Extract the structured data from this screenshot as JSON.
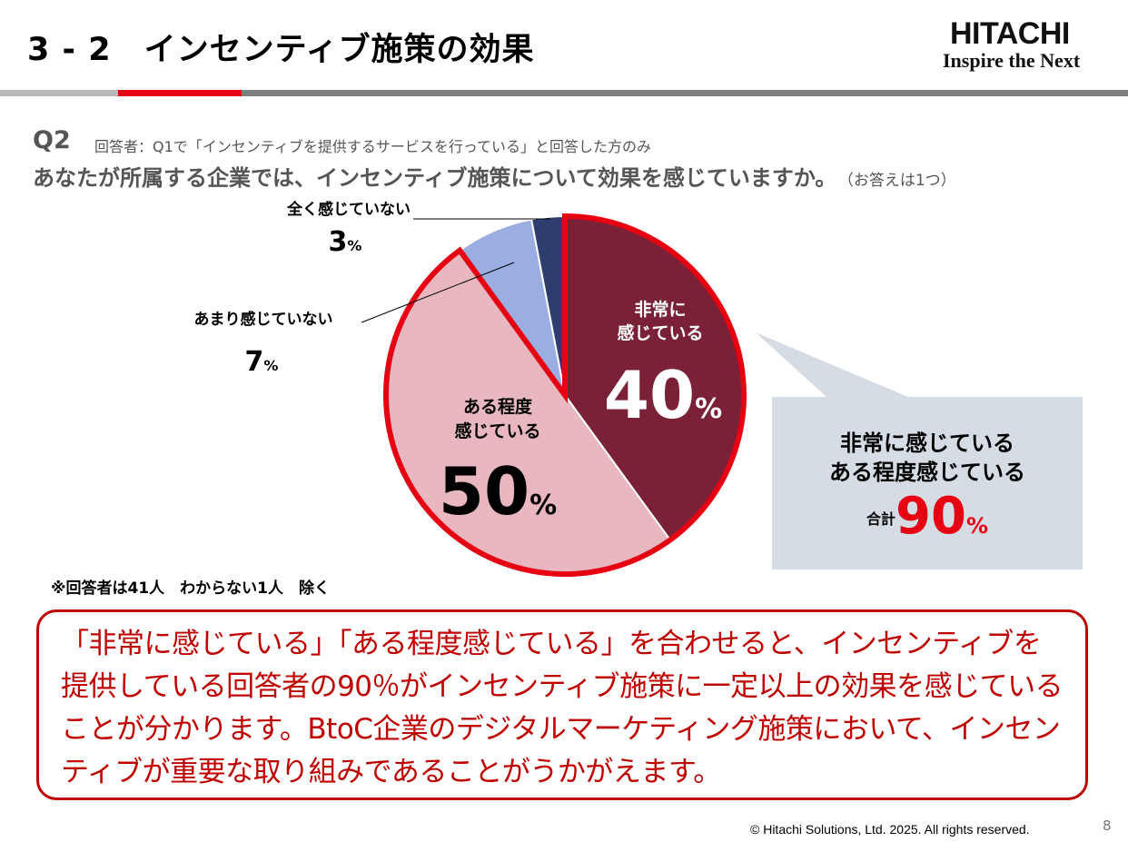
{
  "header": {
    "title": "3 - 2　インセンティブ施策の効果",
    "logo_main": "HITACHI",
    "logo_tagline": "Inspire the Next"
  },
  "question": {
    "label": "Q2",
    "respondents": "回答者：Q1で「インセンティブを提供するサービスを行っている」と回答した方のみ",
    "text": "あなたが所属する企業では、インセンティブ施策について効果を感じていますか。",
    "note": "（お答えは1つ）"
  },
  "chart_data": {
    "type": "pie",
    "slices": [
      {
        "label_lines": [
          "非常に",
          "感じている"
        ],
        "value": 40,
        "color": "#7b2137"
      },
      {
        "label_lines": [
          "ある程度",
          "感じている"
        ],
        "value": 50,
        "color": "#e8b7c0"
      },
      {
        "label_lines": [
          "あまり感じていない"
        ],
        "value": 7,
        "color": "#9aaee2"
      },
      {
        "label_lines": [
          "全く感じていない"
        ],
        "value": 3,
        "color": "#2d3e6e"
      }
    ],
    "unit": "%",
    "highlight_border_color": "#e60012"
  },
  "summary": {
    "line1": "非常に感じている",
    "line2": "ある程度感じている",
    "total_label": "合計",
    "total_value": "90",
    "total_unit": "%"
  },
  "footnote": "※回答者は41人　わからない1人　除く",
  "conclusion": "「非常に感じている」「ある程度感じている」を合わせると、インセンティブを提供している回答者の90％がインセンティブ施策に一定以上の効果を感じていることが分かります。BtoC企業のデジタルマーケティング施策において、インセンティブが重要な取り組みであることがうかがえます。",
  "footer": {
    "copyright": "© Hitachi Solutions, Ltd. 2025. All rights reserved.",
    "page_number": "8"
  }
}
